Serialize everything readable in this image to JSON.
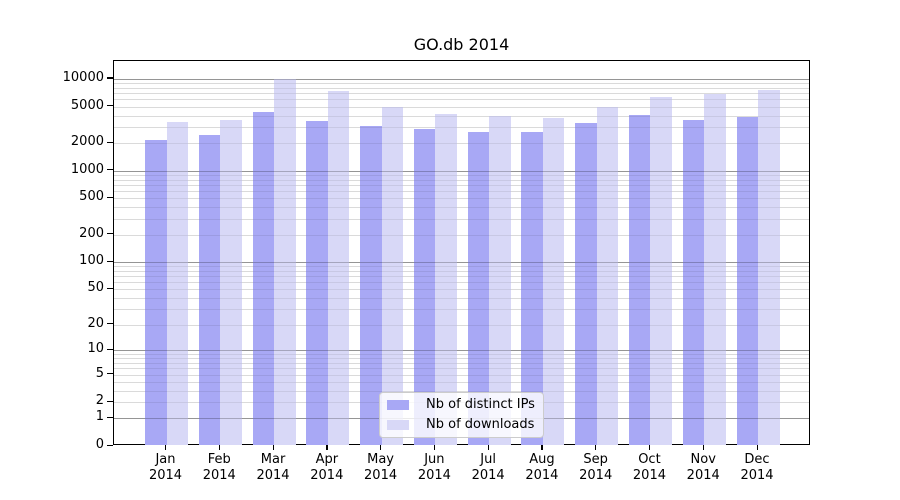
{
  "chart_data": {
    "type": "bar",
    "title": "GO.db 2014",
    "x": {
      "months": [
        "Jan",
        "Feb",
        "Mar",
        "Apr",
        "May",
        "Jun",
        "Jul",
        "Aug",
        "Sep",
        "Oct",
        "Nov",
        "Dec"
      ],
      "year": "2014"
    },
    "series": [
      {
        "name": "Nb of distinct IPs",
        "color": "#a8a8f5",
        "values": [
          2150,
          2450,
          4350,
          3500,
          3050,
          2850,
          2650,
          2650,
          3300,
          4100,
          3550,
          3850
        ]
      },
      {
        "name": "Nb of downloads",
        "color": "#d8d8f7",
        "values": [
          3400,
          3550,
          10000,
          7400,
          4900,
          4150,
          3950,
          3750,
          5000,
          6350,
          6850,
          7600
        ]
      }
    ],
    "y_axis": {
      "scale": "log1p",
      "ticks": [
        0,
        1,
        2,
        5,
        10,
        20,
        50,
        100,
        200,
        500,
        1000,
        2000,
        5000,
        10000
      ],
      "range": [
        0,
        10000
      ]
    },
    "grid": {
      "on": true,
      "minor_color": "#ececec",
      "major_color": "#c3c3c3"
    },
    "legend": {
      "position": "bottom-center"
    },
    "colors": {
      "axis": "#000000",
      "background": "#ffffff"
    }
  }
}
